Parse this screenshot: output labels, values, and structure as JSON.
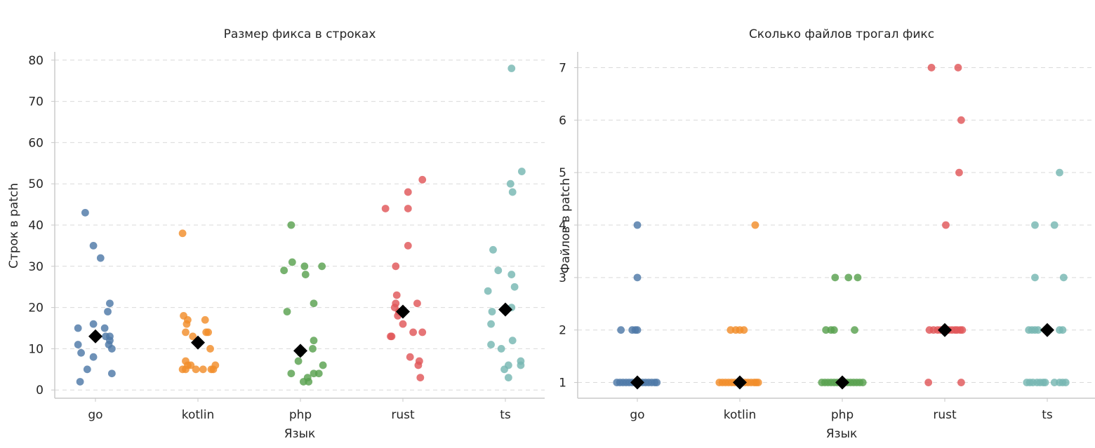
{
  "chart_data": [
    {
      "type": "scatter",
      "title": "Размер фикса в строках",
      "xlabel": "Язык",
      "ylabel": "Строк в patch",
      "categories": [
        "go",
        "kotlin",
        "php",
        "rust",
        "ts"
      ],
      "ylim": [
        -2,
        82
      ],
      "yticks": [
        0,
        10,
        20,
        30,
        40,
        50,
        60,
        70,
        80
      ],
      "grid": "y",
      "marker_mean": "black diamond",
      "series": [
        {
          "name": "go",
          "color": "#4e79a7",
          "mean": 13,
          "points": [
            [
              -0.1,
              43
            ],
            [
              -0.02,
              35
            ],
            [
              0.05,
              32
            ],
            [
              0.14,
              21
            ],
            [
              0.12,
              19
            ],
            [
              -0.02,
              16
            ],
            [
              -0.17,
              15
            ],
            [
              0.09,
              15
            ],
            [
              0.1,
              13
            ],
            [
              0.14,
              13
            ],
            [
              0.0,
              13
            ],
            [
              0.14,
              12
            ],
            [
              -0.17,
              11
            ],
            [
              0.13,
              11
            ],
            [
              0.16,
              10
            ],
            [
              -0.14,
              9
            ],
            [
              -0.02,
              8
            ],
            [
              -0.08,
              5
            ],
            [
              0.16,
              4
            ],
            [
              -0.15,
              2
            ]
          ]
        },
        {
          "name": "kotlin",
          "color": "#f28e2b",
          "mean": 11.5,
          "points": [
            [
              -0.15,
              38
            ],
            [
              -0.14,
              18
            ],
            [
              -0.1,
              17
            ],
            [
              -0.11,
              16
            ],
            [
              0.07,
              17
            ],
            [
              0.08,
              14
            ],
            [
              -0.12,
              14
            ],
            [
              0.1,
              14
            ],
            [
              -0.05,
              13
            ],
            [
              0.12,
              10
            ],
            [
              -0.12,
              7
            ],
            [
              -0.1,
              6
            ],
            [
              -0.07,
              6
            ],
            [
              0.17,
              6
            ],
            [
              -0.15,
              5
            ],
            [
              -0.02,
              5
            ],
            [
              0.13,
              5
            ],
            [
              0.15,
              5
            ],
            [
              -0.12,
              5
            ],
            [
              0.05,
              5
            ]
          ]
        },
        {
          "name": "php",
          "color": "#59a14f",
          "mean": 9.5,
          "points": [
            [
              -0.09,
              40
            ],
            [
              -0.08,
              31
            ],
            [
              0.04,
              30
            ],
            [
              0.21,
              30
            ],
            [
              -0.16,
              29
            ],
            [
              0.05,
              28
            ],
            [
              0.13,
              21
            ],
            [
              -0.13,
              19
            ],
            [
              0.13,
              12
            ],
            [
              0.12,
              10
            ],
            [
              0.0,
              9
            ],
            [
              -0.02,
              7
            ],
            [
              0.22,
              6
            ],
            [
              0.18,
              4
            ],
            [
              0.13,
              4
            ],
            [
              -0.09,
              4
            ],
            [
              0.07,
              3
            ],
            [
              0.03,
              2
            ],
            [
              0.08,
              2
            ]
          ]
        },
        {
          "name": "rust",
          "color": "#e15759",
          "mean": 19,
          "points": [
            [
              0.19,
              51
            ],
            [
              0.05,
              48
            ],
            [
              -0.17,
              44
            ],
            [
              0.05,
              44
            ],
            [
              0.05,
              35
            ],
            [
              -0.07,
              30
            ],
            [
              -0.06,
              23
            ],
            [
              -0.07,
              21
            ],
            [
              0.14,
              21
            ],
            [
              -0.08,
              20
            ],
            [
              -0.04,
              19
            ],
            [
              -0.05,
              18
            ],
            [
              0.0,
              16
            ],
            [
              0.1,
              14
            ],
            [
              0.19,
              14
            ],
            [
              -0.11,
              13
            ],
            [
              -0.12,
              13
            ],
            [
              0.07,
              8
            ],
            [
              0.16,
              7
            ],
            [
              0.15,
              6
            ],
            [
              0.17,
              3
            ]
          ]
        },
        {
          "name": "ts",
          "color": "#76b7b2",
          "mean": 19.5,
          "points": [
            [
              0.06,
              78
            ],
            [
              0.16,
              53
            ],
            [
              0.05,
              50
            ],
            [
              0.07,
              48
            ],
            [
              -0.12,
              34
            ],
            [
              -0.07,
              29
            ],
            [
              0.06,
              28
            ],
            [
              0.09,
              25
            ],
            [
              -0.17,
              24
            ],
            [
              -0.13,
              19
            ],
            [
              0.06,
              20
            ],
            [
              -0.14,
              16
            ],
            [
              0.07,
              12
            ],
            [
              -0.14,
              11
            ],
            [
              -0.04,
              10
            ],
            [
              0.15,
              7
            ],
            [
              0.15,
              6
            ],
            [
              0.03,
              6
            ],
            [
              -0.01,
              5
            ],
            [
              0.03,
              3
            ]
          ]
        }
      ]
    },
    {
      "type": "scatter",
      "title": "Сколько файлов трогал фикс",
      "xlabel": "Язык",
      "ylabel": "Файлов в patch",
      "categories": [
        "go",
        "kotlin",
        "php",
        "rust",
        "ts"
      ],
      "ylim": [
        0.7,
        7.3
      ],
      "yticks": [
        1,
        2,
        3,
        4,
        5,
        6,
        7
      ],
      "grid": "y",
      "marker_mean": "black diamond",
      "series": [
        {
          "name": "go",
          "color": "#4e79a7",
          "mean": 1,
          "points": [
            [
              0.0,
              4
            ],
            [
              0.0,
              3
            ],
            [
              -0.16,
              2
            ],
            [
              -0.05,
              2
            ],
            [
              -0.02,
              2
            ],
            [
              0.0,
              2
            ],
            [
              -0.2,
              1
            ],
            [
              -0.17,
              1
            ],
            [
              -0.14,
              1
            ],
            [
              -0.11,
              1
            ],
            [
              -0.08,
              1
            ],
            [
              -0.05,
              1
            ],
            [
              -0.02,
              1
            ],
            [
              0.02,
              1
            ],
            [
              0.05,
              1
            ],
            [
              0.08,
              1
            ],
            [
              0.11,
              1
            ],
            [
              0.14,
              1
            ],
            [
              0.17,
              1
            ],
            [
              0.19,
              1
            ]
          ]
        },
        {
          "name": "kotlin",
          "color": "#f28e2b",
          "mean": 1,
          "points": [
            [
              0.15,
              4
            ],
            [
              -0.09,
              2
            ],
            [
              -0.04,
              2
            ],
            [
              0.0,
              2
            ],
            [
              0.04,
              2
            ],
            [
              -0.2,
              1
            ],
            [
              -0.17,
              1
            ],
            [
              -0.14,
              1
            ],
            [
              -0.11,
              1
            ],
            [
              -0.08,
              1
            ],
            [
              -0.05,
              1
            ],
            [
              -0.02,
              1
            ],
            [
              0.02,
              1
            ],
            [
              0.05,
              1
            ],
            [
              0.08,
              1
            ],
            [
              0.11,
              1
            ],
            [
              0.14,
              1
            ],
            [
              0.16,
              1
            ],
            [
              0.18,
              1
            ]
          ]
        },
        {
          "name": "php",
          "color": "#59a14f",
          "mean": 1,
          "points": [
            [
              -0.07,
              3
            ],
            [
              0.06,
              3
            ],
            [
              0.15,
              3
            ],
            [
              -0.16,
              2
            ],
            [
              -0.11,
              2
            ],
            [
              -0.08,
              2
            ],
            [
              0.12,
              2
            ],
            [
              -0.2,
              1
            ],
            [
              -0.17,
              1
            ],
            [
              -0.14,
              1
            ],
            [
              -0.11,
              1
            ],
            [
              -0.08,
              1
            ],
            [
              -0.05,
              1
            ],
            [
              -0.02,
              1
            ],
            [
              0.02,
              1
            ],
            [
              0.05,
              1
            ],
            [
              0.08,
              1
            ],
            [
              0.11,
              1
            ],
            [
              0.14,
              1
            ],
            [
              0.17,
              1
            ],
            [
              0.2,
              1
            ]
          ]
        },
        {
          "name": "rust",
          "color": "#e15759",
          "mean": 2,
          "points": [
            [
              -0.13,
              7
            ],
            [
              0.13,
              7
            ],
            [
              0.16,
              6
            ],
            [
              0.14,
              5
            ],
            [
              0.01,
              4
            ],
            [
              -0.15,
              2
            ],
            [
              -0.11,
              2
            ],
            [
              -0.07,
              2
            ],
            [
              -0.04,
              2
            ],
            [
              0.0,
              2
            ],
            [
              0.04,
              2
            ],
            [
              0.07,
              2
            ],
            [
              0.1,
              2
            ],
            [
              0.12,
              2
            ],
            [
              0.15,
              2
            ],
            [
              0.17,
              2
            ],
            [
              -0.16,
              1
            ],
            [
              0.16,
              1
            ]
          ]
        },
        {
          "name": "ts",
          "color": "#76b7b2",
          "mean": 2,
          "points": [
            [
              0.12,
              5
            ],
            [
              -0.12,
              4
            ],
            [
              0.07,
              4
            ],
            [
              -0.12,
              3
            ],
            [
              0.16,
              3
            ],
            [
              -0.18,
              2
            ],
            [
              -0.15,
              2
            ],
            [
              -0.12,
              2
            ],
            [
              -0.09,
              2
            ],
            [
              0.12,
              2
            ],
            [
              0.15,
              2
            ],
            [
              -0.2,
              1
            ],
            [
              -0.17,
              1
            ],
            [
              -0.14,
              1
            ],
            [
              -0.1,
              1
            ],
            [
              -0.07,
              1
            ],
            [
              -0.04,
              1
            ],
            [
              -0.02,
              1
            ],
            [
              0.07,
              1
            ],
            [
              0.12,
              1
            ],
            [
              0.15,
              1
            ],
            [
              0.18,
              1
            ]
          ]
        }
      ]
    }
  ]
}
